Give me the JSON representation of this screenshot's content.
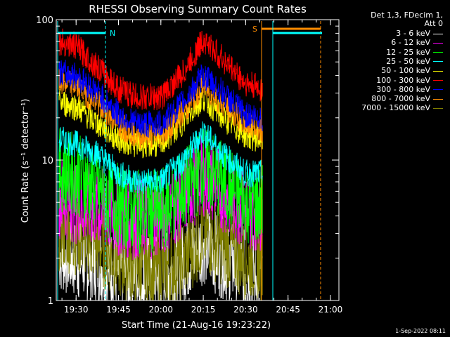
{
  "chart_data": {
    "type": "line",
    "title": "RHESSI Observing Summary Count Rates",
    "xlabel": "Start Time (21-Aug-16 19:23:22)",
    "ylabel": "Count Rate (s⁻¹ detector⁻¹)",
    "yscale": "log",
    "ylim": [
      1,
      100
    ],
    "xlim_minutes": [
      19.383,
      21.05
    ],
    "x_ticks": [
      "19:30",
      "19:45",
      "20:00",
      "20:15",
      "20:30",
      "20:45",
      "21:00"
    ],
    "y_ticks": [
      "1",
      "10",
      "100"
    ],
    "grid": false,
    "legend_position": "right",
    "legend_header": [
      "Det 1,3, FDecim 1,",
      "Att 0"
    ],
    "series": [
      {
        "name": "3 - 6 keV",
        "color": "#ffffff",
        "x": [
          "19:24",
          "19:30",
          "19:38",
          "19:45",
          "19:52",
          "20:00",
          "20:08",
          "20:15",
          "20:22",
          "20:30",
          "20:36"
        ],
        "values": [
          2.2,
          2.0,
          1.8,
          1.6,
          1.5,
          1.5,
          1.8,
          2.6,
          2.0,
          1.6,
          1.5
        ]
      },
      {
        "name": "6 - 12 keV",
        "color": "#ff00ff",
        "x": [
          "19:24",
          "19:30",
          "19:38",
          "19:45",
          "19:52",
          "20:00",
          "20:08",
          "20:15",
          "20:22",
          "20:30",
          "20:36"
        ],
        "values": [
          5.5,
          5.0,
          4.5,
          4.0,
          3.8,
          4.0,
          5.5,
          8.0,
          6.0,
          4.5,
          4.5
        ]
      },
      {
        "name": "12 - 25 keV",
        "color": "#00ff00",
        "x": [
          "19:24",
          "19:30",
          "19:38",
          "19:45",
          "19:52",
          "20:00",
          "20:08",
          "20:15",
          "20:22",
          "20:30",
          "20:36"
        ],
        "values": [
          8.5,
          8.0,
          6.0,
          4.8,
          4.3,
          4.3,
          6.0,
          9.0,
          7.0,
          5.0,
          4.8
        ]
      },
      {
        "name": "25 - 50 keV",
        "color": "#00ffff",
        "x": [
          "19:24",
          "19:30",
          "19:38",
          "19:45",
          "19:52",
          "20:00",
          "20:08",
          "20:15",
          "20:22",
          "20:30",
          "20:36"
        ],
        "values": [
          14,
          13,
          11,
          8,
          7,
          7,
          10,
          16,
          11,
          8,
          8
        ]
      },
      {
        "name": "50 - 100 keV",
        "color": "#ffff00",
        "x": [
          "19:24",
          "19:30",
          "19:38",
          "19:45",
          "19:52",
          "20:00",
          "20:08",
          "20:15",
          "20:22",
          "20:30",
          "20:36"
        ],
        "values": [
          26,
          24,
          18,
          14,
          13,
          13,
          19,
          28,
          20,
          15,
          14
        ]
      },
      {
        "name": "100 - 300 keV",
        "color": "#ff0000",
        "x": [
          "19:24",
          "19:30",
          "19:38",
          "19:45",
          "19:52",
          "20:00",
          "20:08",
          "20:15",
          "20:22",
          "20:30",
          "20:36"
        ],
        "values": [
          70,
          65,
          45,
          32,
          28,
          28,
          42,
          72,
          52,
          35,
          32
        ]
      },
      {
        "name": "300 - 800 keV",
        "color": "#0000ff",
        "x": [
          "19:24",
          "19:30",
          "19:38",
          "19:45",
          "19:52",
          "20:00",
          "20:08",
          "20:15",
          "20:22",
          "20:30",
          "20:36"
        ],
        "values": [
          42,
          40,
          30,
          21,
          18,
          18,
          26,
          40,
          30,
          21,
          20
        ]
      },
      {
        "name": "800 - 7000 keV",
        "color": "#ff8c00",
        "x": [
          "19:24",
          "19:30",
          "19:38",
          "19:45",
          "19:52",
          "20:00",
          "20:08",
          "20:15",
          "20:22",
          "20:30",
          "20:36"
        ],
        "values": [
          36,
          34,
          25,
          18,
          15,
          15,
          22,
          34,
          25,
          18,
          17
        ]
      },
      {
        "name": "7000 - 15000 keV",
        "color": "#808000",
        "x": [
          "19:24",
          "19:30",
          "19:38",
          "19:45",
          "19:52",
          "20:00",
          "20:08",
          "20:15",
          "20:22",
          "20:30",
          "20:36"
        ],
        "values": [
          3.2,
          3.0,
          2.5,
          2.0,
          1.8,
          1.6,
          2.0,
          3.0,
          2.5,
          2.0,
          2.0
        ]
      }
    ],
    "annotations": [
      {
        "label": "N",
        "color": "#00ffff"
      },
      {
        "label": "S",
        "color": "#ff8c00"
      }
    ]
  },
  "footer": "1-Sep-2022 08:11"
}
